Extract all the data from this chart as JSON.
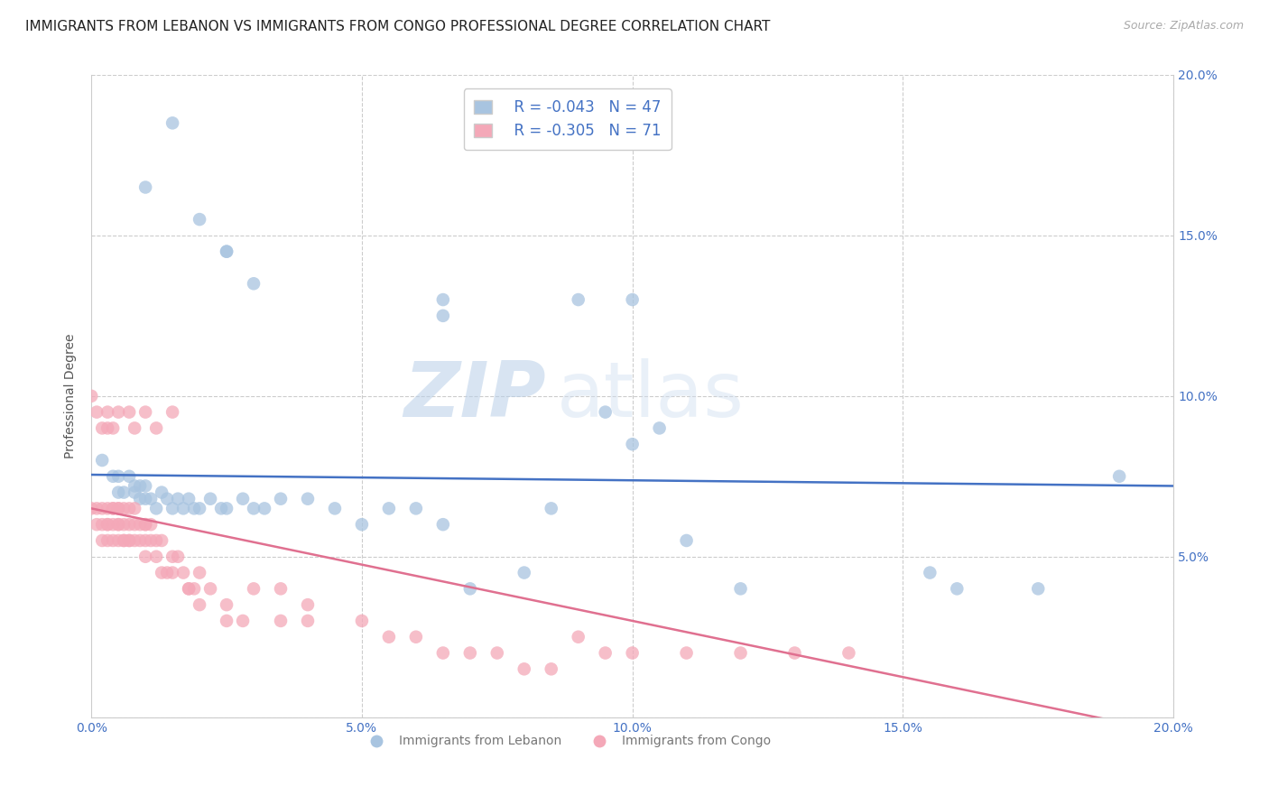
{
  "title": "IMMIGRANTS FROM LEBANON VS IMMIGRANTS FROM CONGO PROFESSIONAL DEGREE CORRELATION CHART",
  "source": "Source: ZipAtlas.com",
  "ylabel": "Professional Degree",
  "xlim": [
    0.0,
    0.2
  ],
  "ylim": [
    0.0,
    0.2
  ],
  "xtick_labels": [
    "0.0%",
    "",
    "",
    "",
    "5.0%",
    "",
    "",
    "",
    "",
    "10.0%",
    "",
    "",
    "",
    "",
    "15.0%",
    "",
    "",
    "",
    "",
    "20.0%"
  ],
  "ytick_labels_right": [
    "",
    "5.0%",
    "10.0%",
    "15.0%",
    "20.0%"
  ],
  "ytick_vals": [
    0.0,
    0.05,
    0.1,
    0.15,
    0.2
  ],
  "lebanon_color": "#a8c4e0",
  "congo_color": "#f4a8b8",
  "line_lebanon_color": "#4472c4",
  "line_congo_color": "#e07090",
  "legend_R_lebanon": "R = -0.043",
  "legend_N_lebanon": "N = 47",
  "legend_R_congo": "R = -0.305",
  "legend_N_congo": "N = 71",
  "watermark_zip": "ZIP",
  "watermark_atlas": "atlas",
  "lebanon_x": [
    0.002,
    0.004,
    0.005,
    0.005,
    0.006,
    0.007,
    0.008,
    0.008,
    0.009,
    0.009,
    0.01,
    0.01,
    0.011,
    0.012,
    0.013,
    0.014,
    0.015,
    0.016,
    0.017,
    0.018,
    0.019,
    0.02,
    0.022,
    0.024,
    0.025,
    0.028,
    0.03,
    0.032,
    0.035,
    0.04,
    0.045,
    0.05,
    0.055,
    0.06,
    0.065,
    0.07,
    0.08,
    0.085,
    0.095,
    0.1,
    0.105,
    0.11,
    0.12,
    0.155,
    0.16,
    0.175,
    0.19
  ],
  "lebanon_y": [
    0.08,
    0.075,
    0.075,
    0.07,
    0.07,
    0.075,
    0.07,
    0.072,
    0.068,
    0.072,
    0.068,
    0.072,
    0.068,
    0.065,
    0.07,
    0.068,
    0.065,
    0.068,
    0.065,
    0.068,
    0.065,
    0.065,
    0.068,
    0.065,
    0.065,
    0.068,
    0.065,
    0.065,
    0.068,
    0.068,
    0.065,
    0.06,
    0.065,
    0.065,
    0.06,
    0.04,
    0.045,
    0.065,
    0.095,
    0.085,
    0.09,
    0.055,
    0.04,
    0.045,
    0.04,
    0.04,
    0.075
  ],
  "lebanon_y_outliers": [
    0.185,
    0.165,
    0.155,
    0.145,
    0.145,
    0.135,
    0.13,
    0.125,
    0.13,
    0.13
  ],
  "lebanon_x_outliers": [
    0.015,
    0.01,
    0.02,
    0.025,
    0.025,
    0.03,
    0.065,
    0.065,
    0.09,
    0.1
  ],
  "congo_x": [
    0.0,
    0.001,
    0.001,
    0.002,
    0.002,
    0.002,
    0.003,
    0.003,
    0.003,
    0.003,
    0.004,
    0.004,
    0.004,
    0.004,
    0.005,
    0.005,
    0.005,
    0.005,
    0.005,
    0.006,
    0.006,
    0.006,
    0.006,
    0.007,
    0.007,
    0.007,
    0.007,
    0.008,
    0.008,
    0.008,
    0.009,
    0.009,
    0.01,
    0.01,
    0.01,
    0.01,
    0.011,
    0.011,
    0.012,
    0.012,
    0.013,
    0.013,
    0.014,
    0.015,
    0.015,
    0.016,
    0.017,
    0.018,
    0.019,
    0.02,
    0.022,
    0.025,
    0.028,
    0.03,
    0.035,
    0.04,
    0.05,
    0.055,
    0.06,
    0.065,
    0.07,
    0.075,
    0.08,
    0.085,
    0.09,
    0.095,
    0.1,
    0.11,
    0.12,
    0.13,
    0.14
  ],
  "congo_y": [
    0.065,
    0.06,
    0.065,
    0.06,
    0.065,
    0.055,
    0.06,
    0.065,
    0.055,
    0.06,
    0.065,
    0.055,
    0.06,
    0.065,
    0.065,
    0.06,
    0.055,
    0.065,
    0.06,
    0.06,
    0.055,
    0.065,
    0.055,
    0.06,
    0.055,
    0.065,
    0.055,
    0.06,
    0.055,
    0.065,
    0.055,
    0.06,
    0.06,
    0.055,
    0.05,
    0.06,
    0.055,
    0.06,
    0.055,
    0.05,
    0.045,
    0.055,
    0.045,
    0.05,
    0.045,
    0.05,
    0.045,
    0.04,
    0.04,
    0.045,
    0.04,
    0.035,
    0.03,
    0.04,
    0.04,
    0.035,
    0.03,
    0.025,
    0.025,
    0.02,
    0.02,
    0.02,
    0.015,
    0.015,
    0.025,
    0.02,
    0.02,
    0.02,
    0.02,
    0.02,
    0.02
  ],
  "congo_x_outliers": [
    0.0,
    0.001,
    0.002,
    0.003,
    0.003,
    0.004,
    0.005,
    0.007,
    0.008,
    0.01,
    0.012,
    0.015,
    0.018,
    0.02,
    0.025,
    0.035,
    0.04
  ],
  "congo_y_outliers": [
    0.1,
    0.095,
    0.09,
    0.095,
    0.09,
    0.09,
    0.095,
    0.095,
    0.09,
    0.095,
    0.09,
    0.095,
    0.04,
    0.035,
    0.03,
    0.03,
    0.03
  ],
  "background_color": "#ffffff",
  "grid_color": "#cccccc",
  "tick_color": "#4472c4",
  "title_fontsize": 11,
  "axis_label_fontsize": 10,
  "tick_fontsize": 10,
  "legend_fontsize": 11
}
